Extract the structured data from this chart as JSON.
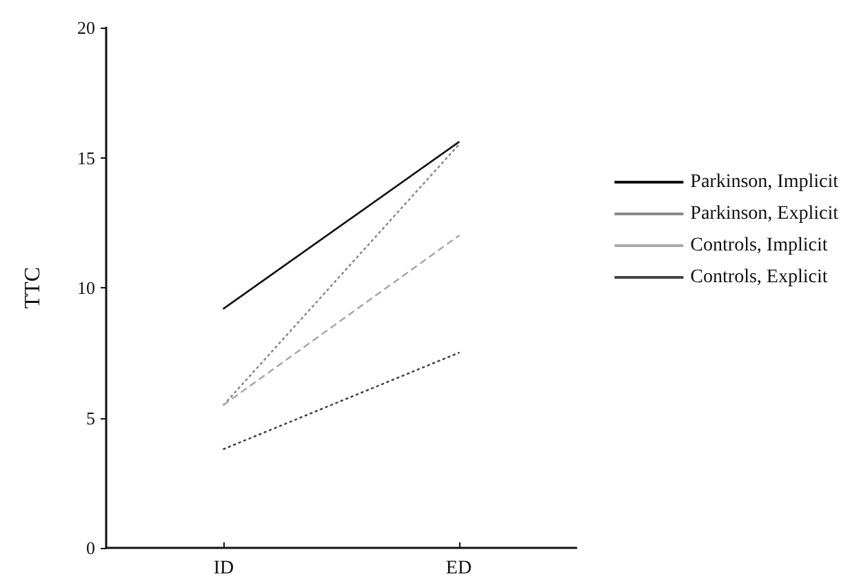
{
  "chart_data": {
    "type": "line",
    "ylabel": "TTC",
    "categories": [
      "ID",
      "ED"
    ],
    "series": [
      {
        "name": "Parkinson, Implicit",
        "color": "#111111",
        "line_style": "solid",
        "values": [
          9.2,
          15.6
        ]
      },
      {
        "name": "Parkinson, Explicit",
        "color": "#888888",
        "line_style": "dotted",
        "values": [
          5.5,
          15.5
        ]
      },
      {
        "name": "Controls, Implicit",
        "color": "#aaaaaa",
        "line_style": "dashed",
        "values": [
          5.5,
          12.0
        ]
      },
      {
        "name": "Controls, Explicit",
        "color": "#444444",
        "line_style": "dotted",
        "values": [
          3.8,
          7.5
        ]
      }
    ],
    "ylim": [
      0,
      20
    ],
    "yticks": [
      0,
      5,
      10,
      15,
      20
    ],
    "grid": false,
    "legend": "right",
    "marker": "none"
  }
}
